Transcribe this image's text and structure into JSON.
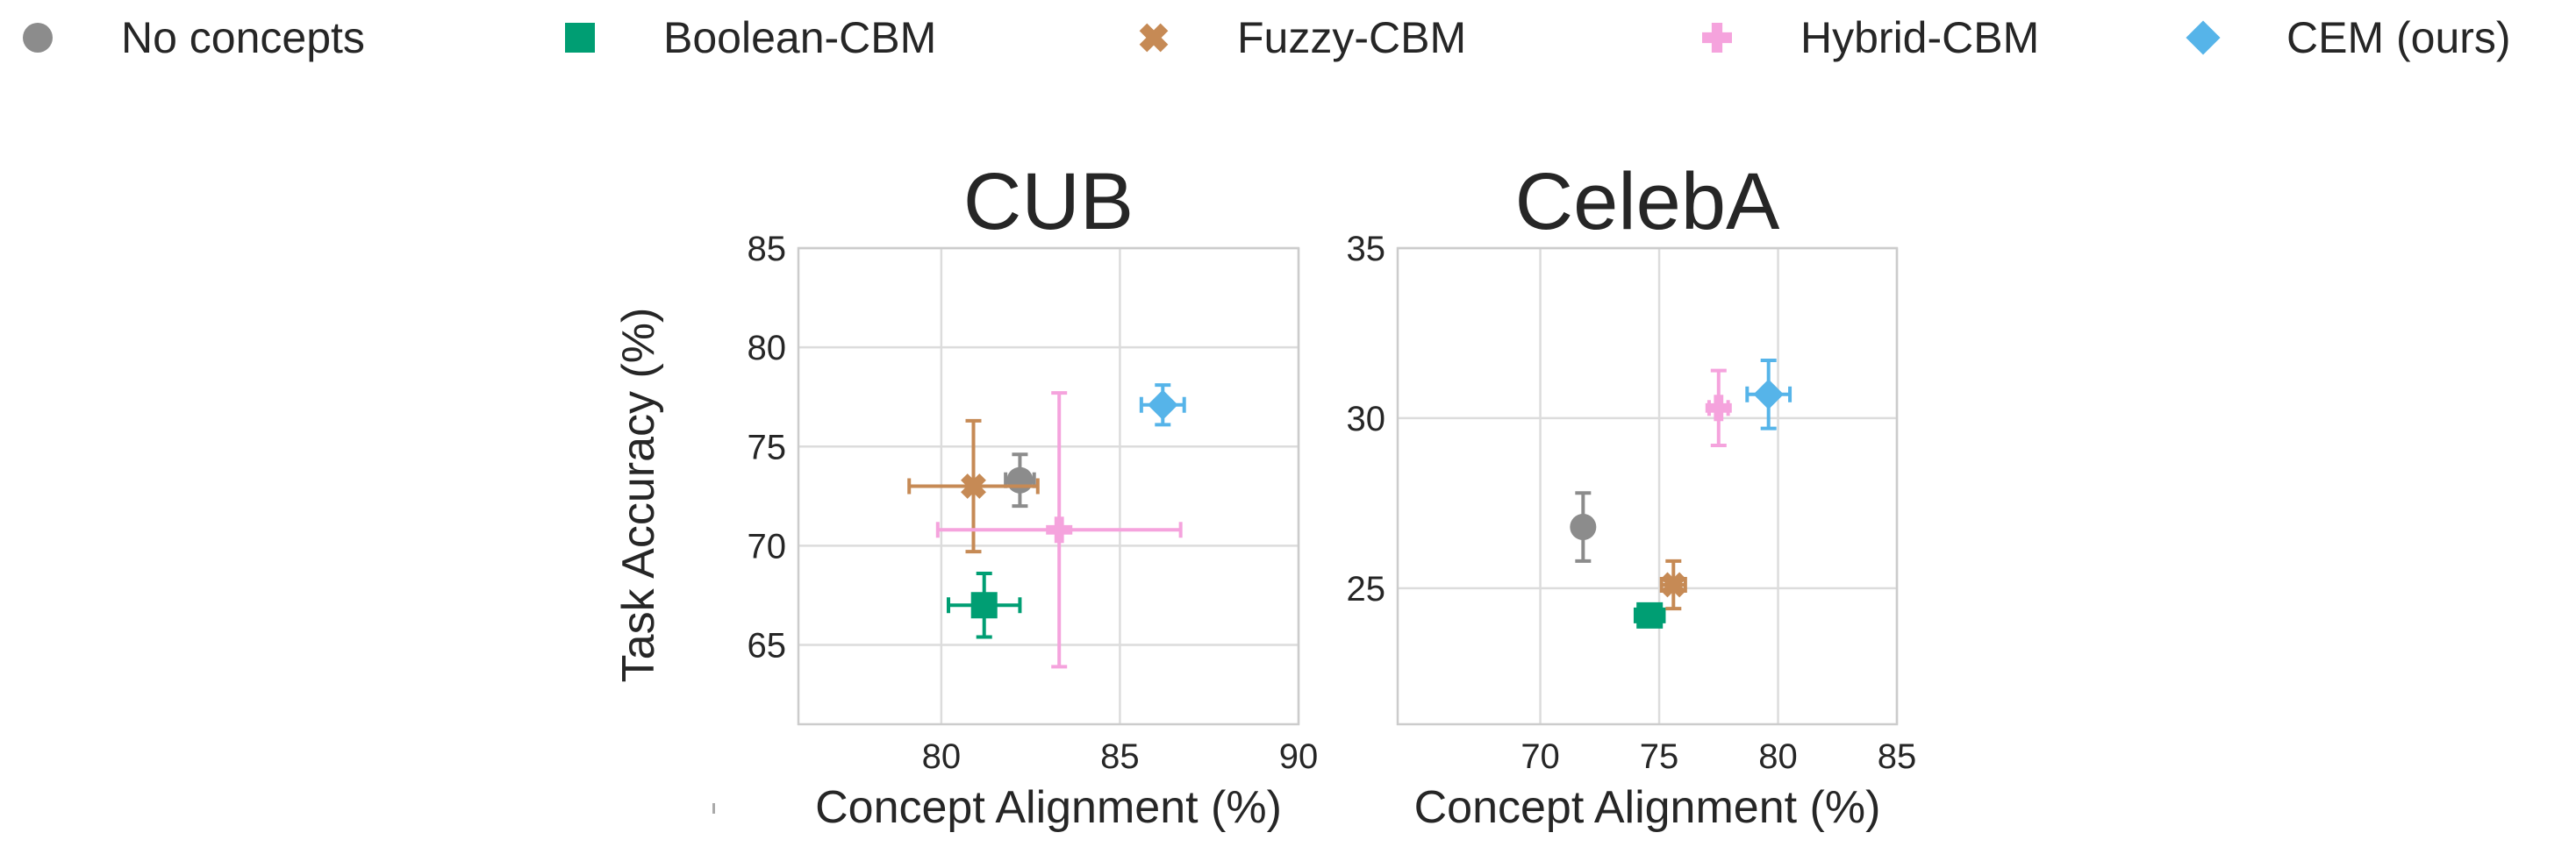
{
  "legend": {
    "items": [
      {
        "label": "No concepts",
        "color": "#8c8c8c",
        "marker": "circle"
      },
      {
        "label": "Boolean-CBM",
        "color": "#009e73",
        "marker": "square"
      },
      {
        "label": "Fuzzy-CBM",
        "color": "#c68a55",
        "marker": "x"
      },
      {
        "label": "Hybrid-CBM",
        "color": "#f5a3dd",
        "marker": "plus"
      },
      {
        "label": "CEM (ours)",
        "color": "#56b4e9",
        "marker": "diamond"
      }
    ]
  },
  "chart_data": [
    {
      "type": "scatter",
      "title": "CUB",
      "xlabel": "Concept Alignment (%)",
      "ylabel": "Task Accuracy (%)",
      "xlim": [
        76,
        90
      ],
      "ylim": [
        61,
        85
      ],
      "xticks": [
        80,
        85,
        90
      ],
      "yticks": [
        65,
        70,
        75,
        80,
        85
      ],
      "grid": true,
      "series": [
        {
          "name": "No concepts",
          "x": 82.2,
          "y": 73.3,
          "xerr": 0.4,
          "yerr": 1.3
        },
        {
          "name": "Boolean-CBM",
          "x": 81.2,
          "y": 67.0,
          "xerr": 1.0,
          "yerr": 1.6
        },
        {
          "name": "Fuzzy-CBM",
          "x": 80.9,
          "y": 73.0,
          "xerr": 1.8,
          "yerr": 3.3
        },
        {
          "name": "Hybrid-CBM",
          "x": 83.3,
          "y": 70.8,
          "xerr": 3.4,
          "yerr": 6.9
        },
        {
          "name": "CEM (ours)",
          "x": 86.2,
          "y": 77.1,
          "xerr": 0.6,
          "yerr": 1.0
        }
      ]
    },
    {
      "type": "scatter",
      "title": "CelebA",
      "xlabel": "Concept Alignment (%)",
      "ylabel": "",
      "xlim": [
        64,
        85
      ],
      "ylim": [
        21,
        35
      ],
      "xticks": [
        70,
        75,
        80,
        85
      ],
      "yticks": [
        25,
        30,
        35
      ],
      "grid": true,
      "series": [
        {
          "name": "No concepts",
          "x": 71.8,
          "y": 26.8,
          "xerr": 0.0,
          "yerr": 1.0
        },
        {
          "name": "Boolean-CBM",
          "x": 74.6,
          "y": 24.2,
          "xerr": 0.6,
          "yerr": 0.0
        },
        {
          "name": "Fuzzy-CBM",
          "x": 75.6,
          "y": 25.1,
          "xerr": 0.5,
          "yerr": 0.7
        },
        {
          "name": "Hybrid-CBM",
          "x": 77.5,
          "y": 30.3,
          "xerr": 0.4,
          "yerr": 1.1
        },
        {
          "name": "CEM (ours)",
          "x": 79.6,
          "y": 30.7,
          "xerr": 0.9,
          "yerr": 1.0
        }
      ]
    }
  ]
}
